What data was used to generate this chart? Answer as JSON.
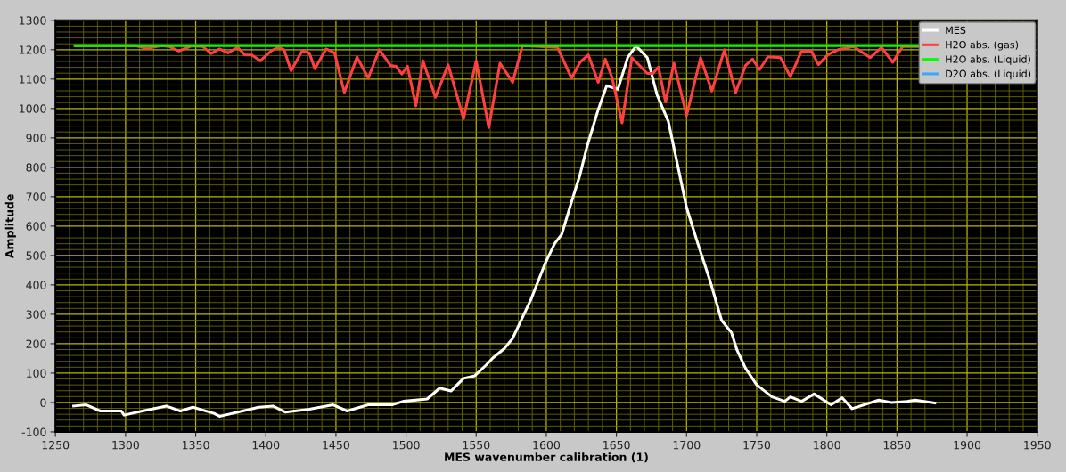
{
  "chart_data": {
    "type": "line",
    "xlabel": "MES wavenumber calibration (1)",
    "ylabel": "Amplitude",
    "xlim": [
      1250,
      1950
    ],
    "xticks": [
      1250,
      {
        "value": 1260,
        "label": null
      },
      {
        "value": 1270,
        "label": null
      },
      {
        "value": 1280,
        "label": null
      },
      {
        "value": 1290,
        "label": null
      },
      1300,
      {
        "value": 1310,
        "label": null
      },
      {
        "value": 1320,
        "label": null
      },
      {
        "value": 1330,
        "label": null
      },
      {
        "value": 1340,
        "label": null
      },
      1350,
      {
        "value": 1360,
        "label": null
      },
      {
        "value": 1370,
        "label": null
      },
      {
        "value": 1380,
        "label": null
      },
      {
        "value": 1390,
        "label": null
      },
      1400,
      {
        "value": 1410,
        "label": null
      },
      {
        "value": 1420,
        "label": null
      },
      {
        "value": 1430,
        "label": null
      },
      {
        "value": 1440,
        "label": null
      },
      1450,
      {
        "value": 1460,
        "label": null
      },
      {
        "value": 1470,
        "label": null
      },
      {
        "value": 1480,
        "label": null
      },
      {
        "value": 1490,
        "label": null
      },
      1500,
      {
        "value": 1510,
        "label": null
      },
      {
        "value": 1520,
        "label": null
      },
      {
        "value": 1530,
        "label": null
      },
      {
        "value": 1540,
        "label": null
      },
      1550,
      {
        "value": 1560,
        "label": null
      },
      {
        "value": 1570,
        "label": null
      },
      {
        "value": 1580,
        "label": null
      },
      {
        "value": 1590,
        "label": null
      },
      1600,
      {
        "value": 1610,
        "label": null
      },
      {
        "value": 1620,
        "label": null
      },
      {
        "value": 1630,
        "label": null
      },
      {
        "value": 1640,
        "label": null
      },
      1650,
      {
        "value": 1660,
        "label": null
      },
      {
        "value": 1670,
        "label": null
      },
      {
        "value": 1680,
        "label": null
      },
      {
        "value": 1690,
        "label": null
      },
      1700,
      {
        "value": 1710,
        "label": null
      },
      {
        "value": 1720,
        "label": null
      },
      {
        "value": 1730,
        "label": null
      },
      {
        "value": 1740,
        "label": null
      },
      1750,
      {
        "value": 1760,
        "label": null
      },
      {
        "value": 1770,
        "label": null
      },
      {
        "value": 1780,
        "label": null
      },
      {
        "value": 1790,
        "label": null
      },
      1800,
      {
        "value": 1810,
        "label": null
      },
      {
        "value": 1820,
        "label": null
      },
      {
        "value": 1830,
        "label": null
      },
      {
        "value": 1840,
        "label": null
      },
      1850,
      {
        "value": 1860,
        "label": null
      },
      {
        "value": 1870,
        "label": null
      },
      {
        "value": 1880,
        "label": null
      },
      {
        "value": 1890,
        "label": null
      },
      1900,
      {
        "value": 1910,
        "label": null
      },
      {
        "value": 1920,
        "label": null
      },
      {
        "value": 1930,
        "label": null
      },
      {
        "value": 1940,
        "label": null
      },
      1950
    ],
    "ylim": [
      -100,
      1300
    ],
    "yticks": [
      -100,
      {
        "value": -80,
        "label": null
      },
      {
        "value": -60,
        "label": null
      },
      {
        "value": -40,
        "label": null
      },
      {
        "value": -20,
        "label": null
      },
      0,
      {
        "value": 20,
        "label": null
      },
      {
        "value": 40,
        "label": null
      },
      {
        "value": 60,
        "label": null
      },
      {
        "value": 80,
        "label": null
      },
      100,
      {
        "value": 120,
        "label": null
      },
      {
        "value": 140,
        "label": null
      },
      {
        "value": 160,
        "label": null
      },
      {
        "value": 180,
        "label": null
      },
      200,
      {
        "value": 220,
        "label": null
      },
      {
        "value": 240,
        "label": null
      },
      {
        "value": 260,
        "label": null
      },
      {
        "value": 280,
        "label": null
      },
      300,
      {
        "value": 320,
        "label": null
      },
      {
        "value": 340,
        "label": null
      },
      {
        "value": 360,
        "label": null
      },
      {
        "value": 380,
        "label": null
      },
      400,
      {
        "value": 420,
        "label": null
      },
      {
        "value": 440,
        "label": null
      },
      {
        "value": 460,
        "label": null
      },
      {
        "value": 480,
        "label": null
      },
      500,
      {
        "value": 520,
        "label": null
      },
      {
        "value": 540,
        "label": null
      },
      {
        "value": 560,
        "label": null
      },
      {
        "value": 580,
        "label": null
      },
      600,
      {
        "value": 620,
        "label": null
      },
      {
        "value": 640,
        "label": null
      },
      {
        "value": 660,
        "label": null
      },
      {
        "value": 680,
        "label": null
      },
      700,
      {
        "value": 720,
        "label": null
      },
      {
        "value": 740,
        "label": null
      },
      {
        "value": 760,
        "label": null
      },
      {
        "value": 780,
        "label": null
      },
      800,
      {
        "value": 820,
        "label": null
      },
      {
        "value": 840,
        "label": null
      },
      {
        "value": 860,
        "label": null
      },
      {
        "value": 880,
        "label": null
      },
      900,
      {
        "value": 920,
        "label": null
      },
      {
        "value": 940,
        "label": null
      },
      {
        "value": 960,
        "label": null
      },
      {
        "value": 980,
        "label": null
      },
      1000,
      {
        "value": 1020,
        "label": null
      },
      {
        "value": 1040,
        "label": null
      },
      {
        "value": 1060,
        "label": null
      },
      {
        "value": 1080,
        "label": null
      },
      1100,
      {
        "value": 1120,
        "label": null
      },
      {
        "value": 1140,
        "label": null
      },
      {
        "value": 1160,
        "label": null
      },
      {
        "value": 1180,
        "label": null
      },
      1200,
      {
        "value": 1220,
        "label": null
      },
      {
        "value": 1240,
        "label": null
      },
      {
        "value": 1260,
        "label": null
      },
      {
        "value": 1280,
        "label": null
      },
      1300
    ],
    "grid": true,
    "legend": "top right",
    "marker": "none",
    "line_style": "solid",
    "series": [
      {
        "name": "MES",
        "color": "#ffffff",
        "x": [
          1263,
          1272,
          1282,
          1297,
          1299,
          1312,
          1329,
          1339,
          1348,
          1363,
          1367,
          1380,
          1395,
          1405,
          1414,
          1431,
          1448,
          1458,
          1473,
          1490,
          1498,
          1515,
          1524,
          1532,
          1541,
          1549,
          1557,
          1562,
          1570,
          1576,
          1589,
          1599,
          1606,
          1611,
          1618,
          1624,
          1629,
          1637,
          1643,
          1651,
          1658,
          1664,
          1672,
          1679,
          1687,
          1692,
          1700,
          1708,
          1717,
          1725,
          1732,
          1736,
          1742,
          1750,
          1761,
          1770,
          1774,
          1782,
          1791,
          1803,
          1811,
          1818,
          1829,
          1837,
          1846,
          1858,
          1863,
          1877
        ],
        "values": [
          -12,
          -8,
          -29,
          -29,
          -43,
          -29,
          -12,
          -29,
          -16,
          -37,
          -47,
          -33,
          -16,
          -12,
          -33,
          -23,
          -8,
          -29,
          -8,
          -8,
          4,
          12,
          49,
          39,
          82,
          91,
          127,
          152,
          183,
          218,
          350,
          471,
          541,
          572,
          683,
          774,
          870,
          996,
          1077,
          1065,
          1173,
          1213,
          1173,
          1046,
          956,
          844,
          663,
          541,
          410,
          279,
          238,
          178,
          117,
          60,
          19,
          4,
          19,
          4,
          29,
          -8,
          16,
          -21,
          -4,
          8,
          0,
          4,
          8,
          -2
        ]
      },
      {
        "name": "H2O abs. (gas)",
        "color": "#ff4040",
        "x": [
          1264,
          1307,
          1315,
          1326,
          1331,
          1338,
          1347,
          1355,
          1361,
          1367,
          1373,
          1380,
          1385,
          1390,
          1396,
          1404,
          1409,
          1413,
          1418,
          1426,
          1431,
          1435,
          1443,
          1449,
          1456,
          1465,
          1473,
          1481,
          1489,
          1493,
          1497,
          1501,
          1507,
          1512,
          1521,
          1530,
          1541,
          1550,
          1559,
          1567,
          1576,
          1583,
          1608,
          1618,
          1624,
          1630,
          1637,
          1642,
          1647,
          1654,
          1661,
          1672,
          1676,
          1680,
          1685,
          1691,
          1700,
          1710,
          1718,
          1727,
          1735,
          1742,
          1747,
          1752,
          1758,
          1767,
          1774,
          1782,
          1789,
          1794,
          1801,
          1808,
          1819,
          1831,
          1839,
          1847,
          1854,
          1865
        ],
        "values": [
          1214,
          1214,
          1205,
          1214,
          1211,
          1195,
          1213,
          1211,
          1187,
          1203,
          1189,
          1208,
          1182,
          1182,
          1162,
          1197,
          1208,
          1200,
          1128,
          1197,
          1189,
          1135,
          1203,
          1189,
          1054,
          1175,
          1103,
          1200,
          1146,
          1143,
          1117,
          1144,
          1009,
          1162,
          1038,
          1149,
          965,
          1162,
          935,
          1154,
          1089,
          1214,
          1208,
          1103,
          1157,
          1182,
          1089,
          1168,
          1103,
          951,
          1173,
          1119,
          1119,
          1141,
          1022,
          1154,
          976,
          1173,
          1059,
          1200,
          1054,
          1146,
          1168,
          1132,
          1176,
          1173,
          1108,
          1195,
          1195,
          1149,
          1184,
          1200,
          1211,
          1173,
          1208,
          1157,
          1211,
          1211
        ]
      },
      {
        "name": "H2O abs. (Liquid)",
        "color": "#00ff00",
        "x": [
          1264,
          1865
        ],
        "values": [
          1214,
          1214
        ]
      },
      {
        "name": "D2O abs. (Liquid)",
        "color": "#33aaff"
      }
    ]
  }
}
